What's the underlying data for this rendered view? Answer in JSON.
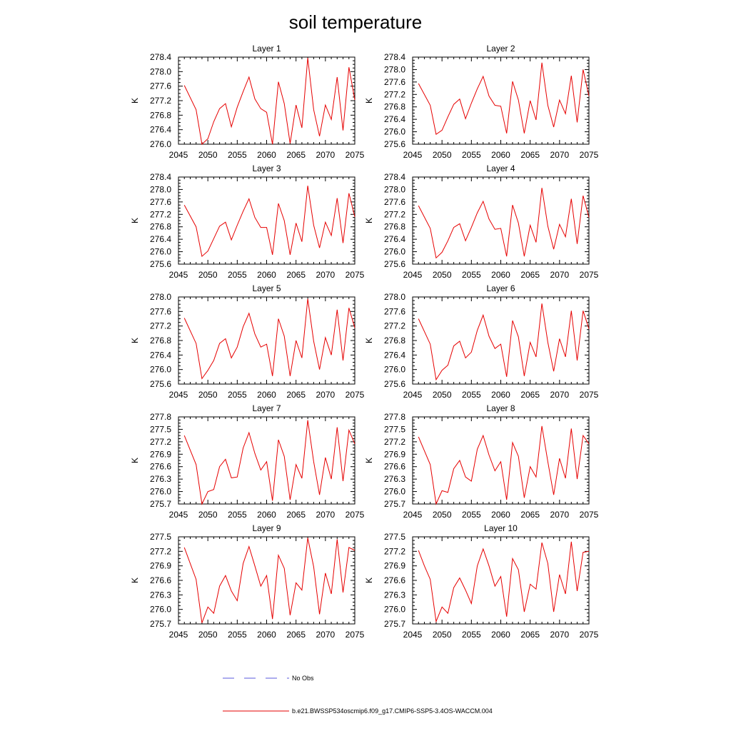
{
  "title": "soil temperature",
  "legend": {
    "items": [
      {
        "label": "No Obs",
        "color": "#5a5adc",
        "dash": true
      },
      {
        "label": "b.e21.BWSSP534oscmip6.f09_g17.CMIP6-SSP5-3.4OS-WACCM.004",
        "color": "#e60000",
        "dash": false
      }
    ]
  },
  "chart_data": [
    {
      "type": "line",
      "title": "Layer 1",
      "ylabel": "K",
      "xlim": [
        2045,
        2075
      ],
      "ylim": [
        276.0,
        278.4
      ],
      "x_ticks": [
        2045,
        2050,
        2055,
        2060,
        2065,
        2070,
        2075
      ],
      "y_ticks": [
        "276.0",
        "276.4",
        "276.8",
        "277.2",
        "277.6",
        "278.0",
        "278.4"
      ],
      "series": [
        {
          "color": "#e60000",
          "x": [
            2046,
            2048,
            2049,
            2050,
            2051,
            2052,
            2053,
            2054,
            2055,
            2056,
            2057,
            2058,
            2059,
            2060,
            2061,
            2062,
            2063,
            2064,
            2065,
            2066,
            2067,
            2068,
            2069,
            2070,
            2071,
            2072,
            2073,
            2074,
            2075
          ],
          "y": [
            277.62,
            276.95,
            276.0,
            276.15,
            276.62,
            276.98,
            277.12,
            276.48,
            277.02,
            277.45,
            277.85,
            277.25,
            276.98,
            276.88,
            276.0,
            277.72,
            277.12,
            276.02,
            277.08,
            276.45,
            278.38,
            276.95,
            276.22,
            277.08,
            276.68,
            277.85,
            276.38,
            278.12,
            277.22
          ]
        }
      ]
    },
    {
      "type": "line",
      "title": "Layer 2",
      "ylabel": "K",
      "xlim": [
        2045,
        2075
      ],
      "ylim": [
        275.6,
        278.4
      ],
      "x_ticks": [
        2045,
        2050,
        2055,
        2060,
        2065,
        2070,
        2075
      ],
      "y_ticks": [
        "275.6",
        "276.0",
        "276.4",
        "276.8",
        "277.2",
        "277.6",
        "278.0",
        "278.4"
      ],
      "series": [
        {
          "color": "#e60000",
          "x": [
            2046,
            2048,
            2049,
            2050,
            2051,
            2052,
            2053,
            2054,
            2055,
            2056,
            2057,
            2058,
            2059,
            2060,
            2061,
            2062,
            2063,
            2064,
            2065,
            2066,
            2067,
            2068,
            2069,
            2070,
            2071,
            2072,
            2073,
            2074,
            2075
          ],
          "y": [
            277.55,
            276.85,
            275.92,
            276.05,
            276.48,
            276.88,
            277.05,
            276.42,
            276.92,
            277.38,
            277.78,
            277.15,
            276.85,
            276.82,
            275.95,
            277.62,
            277.02,
            275.95,
            277.0,
            276.38,
            278.22,
            276.85,
            276.15,
            277.02,
            276.58,
            277.8,
            276.3,
            278.0,
            277.15
          ]
        }
      ]
    },
    {
      "type": "line",
      "title": "Layer 3",
      "ylabel": "K",
      "xlim": [
        2045,
        2075
      ],
      "ylim": [
        275.6,
        278.4
      ],
      "x_ticks": [
        2045,
        2050,
        2055,
        2060,
        2065,
        2070,
        2075
      ],
      "y_ticks": [
        "275.6",
        "276.0",
        "276.4",
        "276.8",
        "277.2",
        "277.6",
        "278.0",
        "278.4"
      ],
      "series": [
        {
          "color": "#e60000",
          "x": [
            2046,
            2048,
            2049,
            2050,
            2051,
            2052,
            2053,
            2054,
            2055,
            2056,
            2057,
            2058,
            2059,
            2060,
            2061,
            2062,
            2063,
            2064,
            2065,
            2066,
            2067,
            2068,
            2069,
            2070,
            2071,
            2072,
            2073,
            2074,
            2075
          ],
          "y": [
            277.5,
            276.8,
            275.85,
            276.02,
            276.42,
            276.82,
            276.95,
            276.38,
            276.85,
            277.3,
            277.7,
            277.1,
            276.78,
            276.78,
            275.9,
            277.55,
            277.0,
            275.9,
            276.92,
            276.32,
            278.12,
            276.85,
            276.12,
            276.95,
            276.52,
            277.72,
            276.28,
            277.88,
            277.12
          ]
        }
      ]
    },
    {
      "type": "line",
      "title": "Layer 4",
      "ylabel": "K",
      "xlim": [
        2045,
        2075
      ],
      "ylim": [
        275.6,
        278.4
      ],
      "x_ticks": [
        2045,
        2050,
        2055,
        2060,
        2065,
        2070,
        2075
      ],
      "y_ticks": [
        "275.6",
        "276.0",
        "276.4",
        "276.8",
        "277.2",
        "277.6",
        "278.0",
        "278.4"
      ],
      "series": [
        {
          "color": "#e60000",
          "x": [
            2046,
            2048,
            2049,
            2050,
            2051,
            2052,
            2053,
            2054,
            2055,
            2056,
            2057,
            2058,
            2059,
            2060,
            2061,
            2062,
            2063,
            2064,
            2065,
            2066,
            2067,
            2068,
            2069,
            2070,
            2071,
            2072,
            2073,
            2074,
            2075
          ],
          "y": [
            277.48,
            276.75,
            275.8,
            275.98,
            276.35,
            276.78,
            276.9,
            276.35,
            276.78,
            277.25,
            277.62,
            277.05,
            276.72,
            276.75,
            275.85,
            277.5,
            276.92,
            275.85,
            276.85,
            276.3,
            278.05,
            276.82,
            276.08,
            276.88,
            276.48,
            277.7,
            276.25,
            277.8,
            277.1
          ]
        }
      ]
    },
    {
      "type": "line",
      "title": "Layer 5",
      "ylabel": "K",
      "xlim": [
        2045,
        2075
      ],
      "ylim": [
        275.6,
        278.0
      ],
      "x_ticks": [
        2045,
        2050,
        2055,
        2060,
        2065,
        2070,
        2075
      ],
      "y_ticks": [
        "275.6",
        "276.0",
        "276.4",
        "276.8",
        "277.2",
        "277.6",
        "278.0"
      ],
      "series": [
        {
          "color": "#e60000",
          "x": [
            2046,
            2048,
            2049,
            2050,
            2051,
            2052,
            2053,
            2054,
            2055,
            2056,
            2057,
            2058,
            2059,
            2060,
            2061,
            2062,
            2063,
            2064,
            2065,
            2066,
            2067,
            2068,
            2069,
            2070,
            2071,
            2072,
            2073,
            2074,
            2075
          ],
          "y": [
            277.42,
            276.72,
            275.75,
            275.98,
            276.25,
            276.72,
            276.85,
            276.32,
            276.62,
            277.18,
            277.55,
            276.98,
            276.62,
            276.7,
            275.82,
            277.4,
            276.92,
            275.82,
            276.8,
            276.32,
            277.95,
            276.78,
            276.0,
            276.88,
            276.4,
            277.65,
            276.25,
            277.7,
            277.15
          ]
        }
      ]
    },
    {
      "type": "line",
      "title": "Layer 6",
      "ylabel": "K",
      "xlim": [
        2045,
        2075
      ],
      "ylim": [
        275.6,
        278.0
      ],
      "x_ticks": [
        2045,
        2050,
        2055,
        2060,
        2065,
        2070,
        2075
      ],
      "y_ticks": [
        "275.6",
        "276.0",
        "276.4",
        "276.8",
        "277.2",
        "277.6",
        "278.0"
      ],
      "series": [
        {
          "color": "#e60000",
          "x": [
            2046,
            2048,
            2049,
            2050,
            2051,
            2052,
            2053,
            2054,
            2055,
            2056,
            2057,
            2058,
            2059,
            2060,
            2061,
            2062,
            2063,
            2064,
            2065,
            2066,
            2067,
            2068,
            2069,
            2070,
            2071,
            2072,
            2073,
            2074,
            2075
          ],
          "y": [
            277.4,
            276.7,
            275.72,
            275.98,
            276.12,
            276.65,
            276.78,
            276.32,
            276.48,
            277.08,
            277.5,
            276.92,
            276.58,
            276.7,
            275.8,
            277.35,
            276.9,
            275.82,
            276.75,
            276.35,
            277.82,
            276.75,
            275.95,
            276.85,
            276.35,
            277.62,
            276.25,
            277.62,
            277.12
          ]
        }
      ]
    },
    {
      "type": "line",
      "title": "Layer 7",
      "ylabel": "K",
      "xlim": [
        2045,
        2075
      ],
      "ylim": [
        275.7,
        277.8
      ],
      "x_ticks": [
        2045,
        2050,
        2055,
        2060,
        2065,
        2070,
        2075
      ],
      "y_ticks": [
        "275.7",
        "276.0",
        "276.3",
        "276.6",
        "276.9",
        "277.2",
        "277.5",
        "277.8"
      ],
      "series": [
        {
          "color": "#e60000",
          "x": [
            2046,
            2048,
            2049,
            2050,
            2051,
            2052,
            2053,
            2054,
            2055,
            2056,
            2057,
            2058,
            2059,
            2060,
            2061,
            2062,
            2063,
            2064,
            2065,
            2066,
            2067,
            2068,
            2069,
            2070,
            2071,
            2072,
            2073,
            2074,
            2075
          ],
          "y": [
            277.35,
            276.65,
            275.7,
            276.0,
            276.05,
            276.6,
            276.78,
            276.33,
            276.35,
            277.05,
            277.42,
            276.92,
            276.52,
            276.72,
            275.78,
            277.25,
            276.85,
            275.8,
            276.65,
            276.32,
            277.72,
            276.72,
            275.92,
            276.82,
            276.3,
            277.55,
            276.25,
            277.48,
            277.15
          ]
        }
      ]
    },
    {
      "type": "line",
      "title": "Layer 8",
      "ylabel": "K",
      "xlim": [
        2045,
        2075
      ],
      "ylim": [
        275.7,
        277.8
      ],
      "x_ticks": [
        2045,
        2050,
        2055,
        2060,
        2065,
        2070,
        2075
      ],
      "y_ticks": [
        "275.7",
        "276.0",
        "276.3",
        "276.6",
        "276.9",
        "277.2",
        "277.5",
        "277.8"
      ],
      "series": [
        {
          "color": "#e60000",
          "x": [
            2046,
            2048,
            2049,
            2050,
            2051,
            2052,
            2053,
            2054,
            2055,
            2056,
            2057,
            2058,
            2059,
            2060,
            2061,
            2062,
            2063,
            2064,
            2065,
            2066,
            2067,
            2068,
            2069,
            2070,
            2071,
            2072,
            2073,
            2074,
            2075
          ],
          "y": [
            277.32,
            276.65,
            275.7,
            276.02,
            275.98,
            276.55,
            276.75,
            276.35,
            276.25,
            277.02,
            277.35,
            276.88,
            276.5,
            276.72,
            275.8,
            277.18,
            276.85,
            275.85,
            276.6,
            276.35,
            277.58,
            276.72,
            275.92,
            276.8,
            276.32,
            277.52,
            276.3,
            277.35,
            277.15
          ]
        }
      ]
    },
    {
      "type": "line",
      "title": "Layer 9",
      "ylabel": "K",
      "xlim": [
        2045,
        2075
      ],
      "ylim": [
        275.7,
        277.5
      ],
      "x_ticks": [
        2045,
        2050,
        2055,
        2060,
        2065,
        2070,
        2075
      ],
      "y_ticks": [
        "275.7",
        "276.0",
        "276.3",
        "276.6",
        "276.9",
        "277.2",
        "277.5"
      ],
      "series": [
        {
          "color": "#e60000",
          "x": [
            2046,
            2048,
            2049,
            2050,
            2051,
            2052,
            2053,
            2054,
            2055,
            2056,
            2057,
            2058,
            2059,
            2060,
            2061,
            2062,
            2063,
            2064,
            2065,
            2066,
            2067,
            2068,
            2069,
            2070,
            2071,
            2072,
            2073,
            2074,
            2075
          ],
          "y": [
            277.28,
            276.62,
            275.72,
            276.05,
            275.92,
            276.48,
            276.7,
            276.38,
            276.18,
            276.95,
            277.3,
            276.9,
            276.48,
            276.7,
            275.8,
            277.12,
            276.85,
            275.88,
            276.55,
            276.4,
            277.48,
            276.88,
            275.9,
            276.75,
            276.32,
            277.45,
            276.35,
            277.28,
            277.22
          ]
        }
      ]
    },
    {
      "type": "line",
      "title": "Layer 10",
      "ylabel": "K",
      "xlim": [
        2045,
        2075
      ],
      "ylim": [
        275.7,
        277.5
      ],
      "x_ticks": [
        2045,
        2050,
        2055,
        2060,
        2065,
        2070,
        2075
      ],
      "y_ticks": [
        "275.7",
        "276.0",
        "276.3",
        "276.6",
        "276.9",
        "277.2",
        "277.5"
      ],
      "series": [
        {
          "color": "#e60000",
          "x": [
            2046,
            2047,
            2048,
            2049,
            2050,
            2051,
            2052,
            2053,
            2054,
            2055,
            2056,
            2057,
            2058,
            2059,
            2060,
            2061,
            2062,
            2063,
            2064,
            2065,
            2066,
            2067,
            2068,
            2069,
            2070,
            2071,
            2072,
            2073,
            2074,
            2075
          ],
          "y": [
            277.22,
            276.9,
            276.62,
            275.75,
            276.05,
            275.92,
            276.45,
            276.65,
            276.4,
            276.12,
            276.9,
            277.25,
            276.9,
            276.48,
            276.68,
            275.85,
            277.05,
            276.82,
            275.95,
            276.52,
            276.42,
            277.38,
            276.95,
            275.95,
            276.72,
            276.32,
            277.4,
            276.38,
            277.18,
            277.2
          ]
        }
      ]
    }
  ]
}
